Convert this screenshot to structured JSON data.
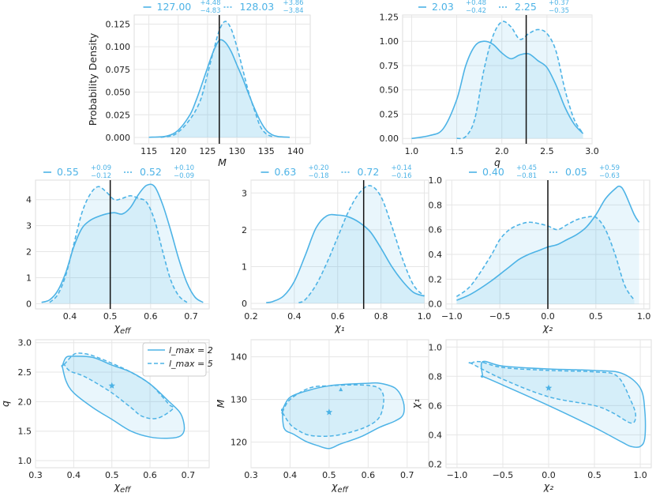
{
  "colors": {
    "curve": "#4db3e6",
    "fill": "#4db3e6",
    "truth": "#111111",
    "grid": "#e6e6e6",
    "axis": "#dddddd"
  },
  "legend": {
    "items": [
      {
        "label": "l_max = 2",
        "style": "solid"
      },
      {
        "label": "l_max = 5",
        "style": "dashed"
      }
    ]
  },
  "chart_data": [
    {
      "id": "p_M",
      "type": "area",
      "xlabel": "M",
      "ylabel": "Probability Density",
      "xlim": [
        112.5,
        142.5
      ],
      "ylim": [
        -0.007,
        0.135
      ],
      "xticks": [
        115,
        120,
        125,
        130,
        135,
        140
      ],
      "xticklabels": [
        "115",
        "120",
        "125",
        "130",
        "135",
        "140"
      ],
      "yticks": [
        0,
        0.025,
        0.05,
        0.075,
        0.1,
        0.125
      ],
      "yticklabels": [
        "0.000",
        "0.025",
        "0.050",
        "0.075",
        "0.100",
        "0.125"
      ],
      "truth": 127,
      "annotation": {
        "solid": {
          "value": "127.00",
          "plus": "+4.48",
          "minus": "−4.83"
        },
        "dashed": {
          "value": "128.03",
          "plus": "+3.86",
          "minus": "−3.84"
        }
      },
      "series": [
        {
          "name": "l_max = 2",
          "style": "solid",
          "x": [
            115,
            118,
            120,
            122,
            123,
            124,
            125,
            126,
            127,
            128,
            129,
            130,
            131,
            132,
            133,
            134,
            135,
            136,
            137,
            139
          ],
          "y": [
            0.0002,
            0.0015,
            0.008,
            0.025,
            0.04,
            0.058,
            0.077,
            0.095,
            0.107,
            0.105,
            0.095,
            0.08,
            0.065,
            0.048,
            0.032,
            0.018,
            0.008,
            0.003,
            0.001,
            0.0002
          ]
        },
        {
          "name": "l_max = 5",
          "style": "dashed",
          "x": [
            117,
            119,
            120,
            121,
            122,
            123,
            124,
            125,
            126,
            127,
            128,
            129,
            130,
            131,
            132,
            133,
            134,
            135,
            136
          ],
          "y": [
            0.0002,
            0.002,
            0.006,
            0.012,
            0.02,
            0.03,
            0.045,
            0.07,
            0.095,
            0.118,
            0.128,
            0.12,
            0.1,
            0.075,
            0.05,
            0.03,
            0.012,
            0.004,
            0.001
          ]
        }
      ]
    },
    {
      "id": "p_q",
      "type": "area",
      "xlabel": "q",
      "ylabel": "",
      "xlim": [
        0.9,
        3.0
      ],
      "ylim": [
        -0.055,
        1.27
      ],
      "xticks": [
        1.0,
        1.5,
        2.0,
        2.5,
        3.0
      ],
      "xticklabels": [
        "1.0",
        "1.5",
        "2.0",
        "2.5",
        "3.0"
      ],
      "yticks": [
        0,
        0.25,
        0.5,
        0.75,
        1.0,
        1.25
      ],
      "yticklabels": [
        "0.00",
        "0.25",
        "0.50",
        "0.75",
        "1.00",
        "1.25"
      ],
      "truth": 2.27,
      "annotation": {
        "solid": {
          "value": "2.03",
          "plus": "+0.48",
          "minus": "−0.42"
        },
        "dashed": {
          "value": "2.25",
          "plus": "+0.37",
          "minus": "−0.35"
        }
      },
      "series": [
        {
          "name": "l_max = 2",
          "style": "solid",
          "x": [
            1.0,
            1.2,
            1.35,
            1.5,
            1.6,
            1.7,
            1.8,
            1.9,
            2.0,
            2.1,
            2.2,
            2.3,
            2.4,
            2.5,
            2.6,
            2.7,
            2.8,
            2.9
          ],
          "y": [
            0.0,
            0.03,
            0.1,
            0.4,
            0.75,
            0.95,
            1.0,
            0.97,
            0.88,
            0.82,
            0.86,
            0.87,
            0.8,
            0.73,
            0.55,
            0.32,
            0.15,
            0.05
          ]
        },
        {
          "name": "l_max = 5",
          "style": "dashed",
          "x": [
            1.5,
            1.6,
            1.7,
            1.8,
            1.9,
            2.0,
            2.1,
            2.2,
            2.3,
            2.4,
            2.5,
            2.6,
            2.7,
            2.8,
            2.9
          ],
          "y": [
            0.0,
            0.02,
            0.2,
            0.7,
            1.05,
            1.2,
            1.15,
            1.02,
            1.08,
            1.12,
            1.08,
            0.9,
            0.5,
            0.2,
            0.05
          ]
        }
      ]
    },
    {
      "id": "p_chieff",
      "type": "area",
      "xlabel": "χ_eff",
      "ylabel": "",
      "xlim": [
        0.315,
        0.745
      ],
      "ylim": [
        -0.2,
        4.75
      ],
      "xticks": [
        0.4,
        0.5,
        0.6,
        0.7
      ],
      "xticklabels": [
        "0.4",
        "0.5",
        "0.6",
        "0.7"
      ],
      "yticks": [
        0,
        1,
        2,
        3,
        4
      ],
      "yticklabels": [
        "0",
        "1",
        "2",
        "3",
        "4"
      ],
      "truth": 0.5,
      "annotation": {
        "solid": {
          "value": "0.55",
          "plus": "+0.09",
          "minus": "−0.12"
        },
        "dashed": {
          "value": "0.52",
          "plus": "+0.10",
          "minus": "−0.09"
        }
      },
      "series": [
        {
          "name": "l_max = 2",
          "style": "solid",
          "x": [
            0.33,
            0.35,
            0.37,
            0.39,
            0.41,
            0.43,
            0.45,
            0.47,
            0.49,
            0.51,
            0.53,
            0.55,
            0.57,
            0.59,
            0.61,
            0.63,
            0.65,
            0.67,
            0.69,
            0.71,
            0.73
          ],
          "y": [
            0.05,
            0.15,
            0.5,
            1.2,
            2.2,
            2.9,
            3.2,
            3.35,
            3.45,
            3.5,
            3.45,
            3.7,
            4.2,
            4.55,
            4.5,
            3.8,
            2.8,
            1.7,
            0.8,
            0.25,
            0.05
          ]
        },
        {
          "name": "l_max = 5",
          "style": "dashed",
          "x": [
            0.35,
            0.37,
            0.39,
            0.41,
            0.43,
            0.45,
            0.47,
            0.49,
            0.51,
            0.53,
            0.55,
            0.57,
            0.59,
            0.61,
            0.63,
            0.65,
            0.67,
            0.69
          ],
          "y": [
            0.05,
            0.35,
            1.1,
            2.3,
            3.5,
            4.2,
            4.5,
            4.3,
            4.0,
            4.05,
            4.15,
            4.05,
            3.9,
            3.2,
            2.0,
            0.9,
            0.3,
            0.05
          ]
        }
      ]
    },
    {
      "id": "p_chi1",
      "type": "area",
      "xlabel": "χ₁",
      "ylabel": "",
      "xlim": [
        0.2,
        1.02
      ],
      "ylim": [
        -0.15,
        3.35
      ],
      "xticks": [
        0.2,
        0.4,
        0.6,
        0.8,
        1.0
      ],
      "xticklabels": [
        "0.2",
        "0.4",
        "0.6",
        "0.8",
        "1.0"
      ],
      "yticks": [
        0,
        1,
        2,
        3
      ],
      "yticklabels": [
        "0",
        "1",
        "2",
        "3"
      ],
      "truth": 0.72,
      "annotation": {
        "solid": {
          "value": "0.63",
          "plus": "+0.20",
          "minus": "−0.18"
        },
        "dashed": {
          "value": "0.72",
          "plus": "+0.14",
          "minus": "−0.16"
        }
      },
      "series": [
        {
          "name": "l_max = 2",
          "style": "solid",
          "x": [
            0.27,
            0.3,
            0.35,
            0.4,
            0.45,
            0.5,
            0.55,
            0.6,
            0.65,
            0.7,
            0.75,
            0.8,
            0.85,
            0.9,
            0.95,
            1.0
          ],
          "y": [
            0.02,
            0.05,
            0.2,
            0.6,
            1.3,
            2.05,
            2.38,
            2.4,
            2.35,
            2.2,
            1.95,
            1.5,
            1.0,
            0.6,
            0.3,
            0.2
          ]
        },
        {
          "name": "l_max = 5",
          "style": "dashed",
          "x": [
            0.42,
            0.45,
            0.5,
            0.55,
            0.6,
            0.65,
            0.7,
            0.75,
            0.8,
            0.85,
            0.9,
            0.95,
            1.0
          ],
          "y": [
            0.02,
            0.1,
            0.5,
            1.1,
            1.8,
            2.5,
            3.0,
            3.2,
            2.9,
            2.1,
            1.2,
            0.5,
            0.2
          ]
        }
      ]
    },
    {
      "id": "p_chi2",
      "type": "area",
      "xlabel": "χ₂",
      "ylabel": "",
      "xlim": [
        -1.06,
        1.06
      ],
      "ylim": [
        -0.04,
        1.0
      ],
      "xticks": [
        -1.0,
        -0.5,
        0,
        0.5,
        1.0
      ],
      "xticklabels": [
        "−1.0",
        "−0.5",
        "0.0",
        "0.5",
        "1.0"
      ],
      "yticks": [
        0,
        0.2,
        0.4,
        0.6,
        0.8,
        1.0
      ],
      "yticklabels": [
        "0.0",
        "0.2",
        "0.4",
        "0.6",
        "0.8",
        "1.0"
      ],
      "truth": 0.0,
      "annotation": {
        "solid": {
          "value": "0.40",
          "plus": "+0.45",
          "minus": "−0.81"
        },
        "dashed": {
          "value": "0.05",
          "plus": "+0.59",
          "minus": "−0.63"
        }
      },
      "series": [
        {
          "name": "l_max = 2",
          "style": "solid",
          "x": [
            -0.95,
            -0.8,
            -0.6,
            -0.4,
            -0.3,
            -0.2,
            -0.1,
            0.0,
            0.1,
            0.2,
            0.3,
            0.4,
            0.5,
            0.6,
            0.7,
            0.75,
            0.8,
            0.9,
            0.95
          ],
          "y": [
            0.03,
            0.08,
            0.18,
            0.3,
            0.36,
            0.4,
            0.43,
            0.46,
            0.48,
            0.52,
            0.56,
            0.62,
            0.72,
            0.85,
            0.93,
            0.95,
            0.9,
            0.72,
            0.66
          ]
        },
        {
          "name": "l_max = 5",
          "style": "dashed",
          "x": [
            -0.95,
            -0.8,
            -0.6,
            -0.5,
            -0.4,
            -0.3,
            -0.2,
            -0.1,
            0.0,
            0.1,
            0.2,
            0.3,
            0.4,
            0.5,
            0.6,
            0.7,
            0.8,
            0.9
          ],
          "y": [
            0.06,
            0.15,
            0.38,
            0.52,
            0.6,
            0.64,
            0.66,
            0.65,
            0.63,
            0.6,
            0.64,
            0.68,
            0.7,
            0.7,
            0.6,
            0.4,
            0.15,
            0.03
          ]
        }
      ]
    },
    {
      "id": "c_q_chieff",
      "type": "scatter",
      "xlabel": "χ_eff",
      "ylabel": "q",
      "xlim": [
        0.3,
        0.755
      ],
      "ylim": [
        0.88,
        3.05
      ],
      "xticks": [
        0.3,
        0.4,
        0.5,
        0.6,
        0.7
      ],
      "xticklabels": [
        "0.3",
        "0.4",
        "0.5",
        "0.6",
        "0.7"
      ],
      "yticks": [
        1.0,
        1.5,
        2.0,
        2.5,
        3.0
      ],
      "yticklabels": [
        "1.0",
        "1.5",
        "2.0",
        "2.5",
        "3.0"
      ],
      "star": [
        0.5,
        2.27
      ],
      "series": [
        {
          "name": "l_max = 2",
          "style": "solid",
          "x": [
            0.37,
            0.38,
            0.4,
            0.45,
            0.5,
            0.55,
            0.6,
            0.65,
            0.68,
            0.69,
            0.68,
            0.65,
            0.6,
            0.55,
            0.5,
            0.45,
            0.4,
            0.38,
            0.37
          ],
          "y": [
            2.6,
            2.75,
            2.77,
            2.75,
            2.62,
            2.5,
            2.3,
            2.0,
            1.8,
            1.55,
            1.42,
            1.38,
            1.4,
            1.5,
            1.7,
            1.9,
            2.15,
            2.35,
            2.6
          ]
        },
        {
          "name": "l_max = 5",
          "style": "dashed",
          "x": [
            0.375,
            0.4,
            0.42,
            0.45,
            0.5,
            0.55,
            0.6,
            0.63,
            0.65,
            0.66,
            0.62,
            0.58,
            0.55,
            0.5,
            0.45,
            0.42,
            0.39,
            0.375
          ],
          "y": [
            2.63,
            2.8,
            2.82,
            2.78,
            2.65,
            2.5,
            2.3,
            2.1,
            1.95,
            1.88,
            1.72,
            1.75,
            1.9,
            2.15,
            2.35,
            2.45,
            2.52,
            2.63
          ]
        }
      ]
    },
    {
      "id": "c_M_chieff",
      "type": "scatter",
      "xlabel": "χ_eff",
      "ylabel": "M",
      "xlim": [
        0.3,
        0.755
      ],
      "ylim": [
        114.0,
        144.0
      ],
      "xticks": [
        0.3,
        0.4,
        0.5,
        0.6,
        0.7
      ],
      "xticklabels": [
        "0.3",
        "0.4",
        "0.5",
        "0.6",
        "0.7"
      ],
      "yticks": [
        120,
        130,
        140
      ],
      "yticklabels": [
        "120",
        "130",
        "140"
      ],
      "star": [
        0.5,
        127
      ],
      "extra_marker": [
        0.53,
        132.3
      ],
      "series": [
        {
          "name": "l_max = 2",
          "style": "solid",
          "x": [
            0.38,
            0.4,
            0.45,
            0.5,
            0.55,
            0.6,
            0.63,
            0.67,
            0.69,
            0.69,
            0.67,
            0.63,
            0.58,
            0.53,
            0.5,
            0.47,
            0.44,
            0.41,
            0.385,
            0.38
          ],
          "y": [
            127.5,
            130.5,
            132.2,
            133.2,
            133.6,
            133.8,
            133.8,
            132.6,
            129.5,
            126.5,
            125.0,
            123.5,
            121.2,
            119.6,
            118.5,
            119.2,
            120.2,
            121.8,
            123.2,
            127.5
          ]
        },
        {
          "name": "l_max = 5",
          "style": "dashed",
          "x": [
            0.38,
            0.4,
            0.45,
            0.5,
            0.55,
            0.6,
            0.63,
            0.64,
            0.63,
            0.6,
            0.55,
            0.5,
            0.45,
            0.42,
            0.4,
            0.38
          ],
          "y": [
            127.0,
            130.0,
            132.7,
            133.2,
            133.4,
            133.3,
            132.5,
            130.0,
            126.0,
            123.8,
            122.2,
            121.4,
            121.6,
            122.8,
            124.2,
            127.0
          ]
        }
      ]
    },
    {
      "id": "c_chi1_chi2",
      "type": "scatter",
      "xlabel": "χ₂",
      "ylabel": "χ₁",
      "xlim": [
        -1.12,
        1.12
      ],
      "ylim": [
        0.175,
        1.05
      ],
      "xticks": [
        -1.0,
        -0.5,
        0,
        0.5,
        1.0
      ],
      "xticklabels": [
        "−1.0",
        "−0.5",
        "0.0",
        "0.5",
        "1.0"
      ],
      "yticks": [
        0.2,
        0.4,
        0.6,
        0.8,
        1.0
      ],
      "yticklabels": [
        "0.2",
        "0.4",
        "0.6",
        "0.8",
        "1.0"
      ],
      "star": [
        0.0,
        0.72
      ],
      "series": [
        {
          "name": "l_max = 2",
          "style": "solid",
          "x": [
            -0.72,
            -0.72,
            -0.5,
            0.0,
            0.5,
            0.8,
            1.0,
            1.05,
            1.05,
            1.0,
            0.9,
            0.8,
            0.5,
            0.0,
            -0.5,
            -0.72
          ],
          "y": [
            0.8,
            0.9,
            0.87,
            0.85,
            0.84,
            0.82,
            0.72,
            0.56,
            0.38,
            0.32,
            0.32,
            0.35,
            0.45,
            0.6,
            0.74,
            0.8
          ]
        },
        {
          "name": "l_max = 5",
          "style": "dashed",
          "x": [
            -0.85,
            -0.75,
            -0.5,
            0.0,
            0.5,
            0.75,
            0.9,
            0.95,
            0.9,
            0.7,
            0.5,
            0.0,
            -0.5,
            -0.85
          ],
          "y": [
            0.89,
            0.9,
            0.86,
            0.84,
            0.83,
            0.8,
            0.63,
            0.53,
            0.48,
            0.55,
            0.6,
            0.66,
            0.78,
            0.89
          ]
        }
      ]
    }
  ]
}
